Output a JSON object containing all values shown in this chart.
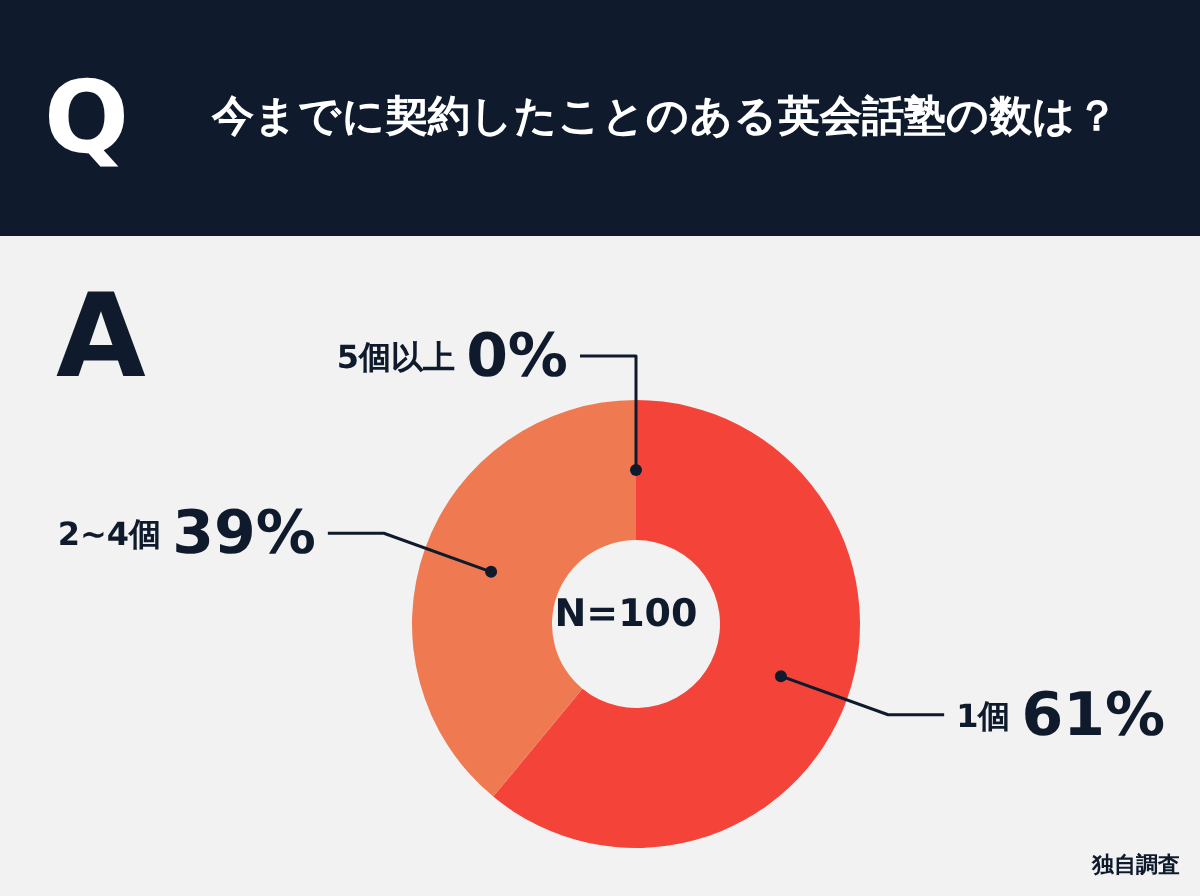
{
  "chart_data": {
    "type": "donut",
    "title": "今までに契約したことのある英会話塾の数は？",
    "categories": [
      "1個",
      "2~4個",
      "5個以上"
    ],
    "values": [
      61,
      39,
      0
    ],
    "colors": [
      "#f4443a",
      "#ef7a52",
      "#f4a582"
    ],
    "value_labels": [
      "61%",
      "39%",
      "0%"
    ],
    "annotations": [
      "Q",
      "A",
      "N=100",
      "独自調査"
    ]
  }
}
